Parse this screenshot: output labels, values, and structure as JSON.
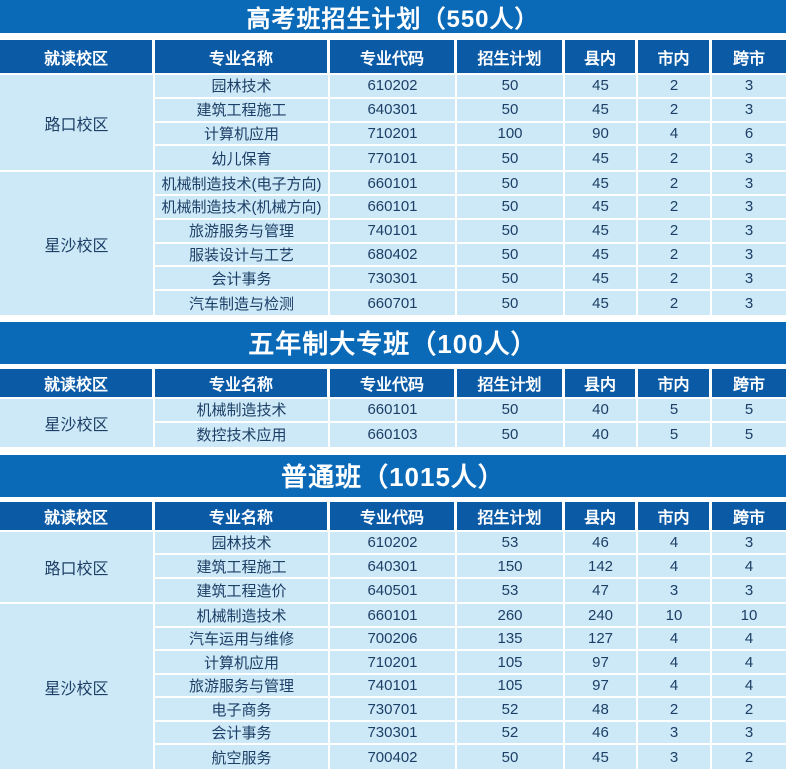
{
  "colors": {
    "title_bar": "#0a6ab8",
    "header_bar": "#0b5aa6",
    "row_bg": "#cde8f7",
    "text_dark": "#1c3f66",
    "separator": "#ffffff"
  },
  "columns": [
    "就读校区",
    "专业名称",
    "专业代码",
    "招生计划",
    "县内",
    "市内",
    "跨市"
  ],
  "sections": [
    {
      "id": "gaokao",
      "title": "高考班招生计划（550人）",
      "groups": [
        {
          "campus": "路口校区",
          "rows": [
            {
              "major": "园林技术",
              "code": "610202",
              "plan": "50",
              "county": "45",
              "city": "2",
              "cross": "3"
            },
            {
              "major": "建筑工程施工",
              "code": "640301",
              "plan": "50",
              "county": "45",
              "city": "2",
              "cross": "3"
            },
            {
              "major": "计算机应用",
              "code": "710201",
              "plan": "100",
              "county": "90",
              "city": "4",
              "cross": "6"
            },
            {
              "major": "幼儿保育",
              "code": "770101",
              "plan": "50",
              "county": "45",
              "city": "2",
              "cross": "3"
            }
          ]
        },
        {
          "campus": "星沙校区",
          "rows": [
            {
              "major": "机械制造技术(电子方向)",
              "code": "660101",
              "plan": "50",
              "county": "45",
              "city": "2",
              "cross": "3"
            },
            {
              "major": "机械制造技术(机械方向)",
              "code": "660101",
              "plan": "50",
              "county": "45",
              "city": "2",
              "cross": "3"
            },
            {
              "major": "旅游服务与管理",
              "code": "740101",
              "plan": "50",
              "county": "45",
              "city": "2",
              "cross": "3"
            },
            {
              "major": "服装设计与工艺",
              "code": "680402",
              "plan": "50",
              "county": "45",
              "city": "2",
              "cross": "3"
            },
            {
              "major": "会计事务",
              "code": "730301",
              "plan": "50",
              "county": "45",
              "city": "2",
              "cross": "3"
            },
            {
              "major": "汽车制造与检测",
              "code": "660701",
              "plan": "50",
              "county": "45",
              "city": "2",
              "cross": "3"
            }
          ]
        }
      ]
    },
    {
      "id": "wunianzhi",
      "title": "五年制大专班（100人）",
      "groups": [
        {
          "campus": "星沙校区",
          "rows": [
            {
              "major": "机械制造技术",
              "code": "660101",
              "plan": "50",
              "county": "40",
              "city": "5",
              "cross": "5"
            },
            {
              "major": "数控技术应用",
              "code": "660103",
              "plan": "50",
              "county": "40",
              "city": "5",
              "cross": "5"
            }
          ]
        }
      ]
    },
    {
      "id": "putong",
      "title": "普通班（1015人）",
      "groups": [
        {
          "campus": "路口校区",
          "rows": [
            {
              "major": "园林技术",
              "code": "610202",
              "plan": "53",
              "county": "46",
              "city": "4",
              "cross": "3"
            },
            {
              "major": "建筑工程施工",
              "code": "640301",
              "plan": "150",
              "county": "142",
              "city": "4",
              "cross": "4"
            },
            {
              "major": "建筑工程造价",
              "code": "640501",
              "plan": "53",
              "county": "47",
              "city": "3",
              "cross": "3"
            }
          ]
        },
        {
          "campus": "星沙校区",
          "rows": [
            {
              "major": "机械制造技术",
              "code": "660101",
              "plan": "260",
              "county": "240",
              "city": "10",
              "cross": "10"
            },
            {
              "major": "汽车运用与维修",
              "code": "700206",
              "plan": "135",
              "county": "127",
              "city": "4",
              "cross": "4"
            },
            {
              "major": "计算机应用",
              "code": "710201",
              "plan": "105",
              "county": "97",
              "city": "4",
              "cross": "4"
            },
            {
              "major": "旅游服务与管理",
              "code": "740101",
              "plan": "105",
              "county": "97",
              "city": "4",
              "cross": "4"
            },
            {
              "major": "电子商务",
              "code": "730701",
              "plan": "52",
              "county": "48",
              "city": "2",
              "cross": "2"
            },
            {
              "major": "会计事务",
              "code": "730301",
              "plan": "52",
              "county": "46",
              "city": "3",
              "cross": "3"
            },
            {
              "major": "航空服务",
              "code": "700402",
              "plan": "50",
              "county": "45",
              "city": "3",
              "cross": "2"
            }
          ]
        }
      ]
    }
  ]
}
